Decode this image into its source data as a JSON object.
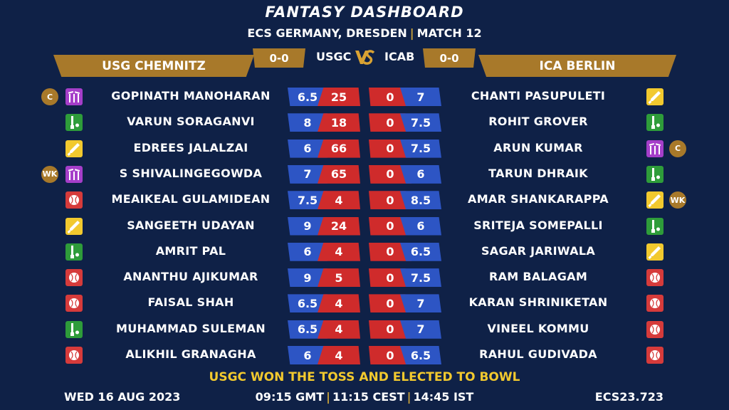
{
  "header": {
    "title": "FANTASY DASHBOARD",
    "subtitle_left": "ECS GERMANY, DRESDEN",
    "subtitle_sep": "|",
    "subtitle_right": "MATCH 12"
  },
  "teams": {
    "left": {
      "name": "USG CHEMNITZ",
      "abbr": "USGC",
      "score": "0-0"
    },
    "right": {
      "name": "ICA BERLIN",
      "abbr": "ICAB",
      "score": "0-0"
    },
    "vs": "VS"
  },
  "role_colors": {
    "bat": "#f2c92e",
    "bowl": "#d63b3b",
    "wk": "#a53ec9",
    "ar": "#2e9c3a"
  },
  "rows": [
    {
      "l_badge": "C",
      "l_role": "wk",
      "l_name": "GOPINATH MANOHARAN",
      "l_v1": "6.5",
      "l_v2": "25",
      "r_v1": "0",
      "r_v2": "7",
      "r_name": "CHANTI PASUPULETI",
      "r_role": "bat",
      "r_badge": ""
    },
    {
      "l_badge": "",
      "l_role": "ar",
      "l_name": "VARUN SORAGANVI",
      "l_v1": "8",
      "l_v2": "18",
      "r_v1": "0",
      "r_v2": "7.5",
      "r_name": "ROHIT GROVER",
      "r_role": "ar",
      "r_badge": ""
    },
    {
      "l_badge": "",
      "l_role": "bat",
      "l_name": "EDREES JALALZAI",
      "l_v1": "6",
      "l_v2": "66",
      "r_v1": "0",
      "r_v2": "7.5",
      "r_name": "ARUN KUMAR",
      "r_role": "wk",
      "r_badge": "C"
    },
    {
      "l_badge": "WK",
      "l_role": "wk",
      "l_name": "S SHIVALINGEGOWDA",
      "l_v1": "7",
      "l_v2": "65",
      "r_v1": "0",
      "r_v2": "6",
      "r_name": "TARUN DHRAIK",
      "r_role": "ar",
      "r_badge": ""
    },
    {
      "l_badge": "",
      "l_role": "bowl",
      "l_name": "MEAIKEAL GULAMIDEAN",
      "l_v1": "7.5",
      "l_v2": "4",
      "r_v1": "0",
      "r_v2": "8.5",
      "r_name": "AMAR SHANKARAPPA",
      "r_role": "bat",
      "r_badge": "WK"
    },
    {
      "l_badge": "",
      "l_role": "bat",
      "l_name": "SANGEETH UDAYAN",
      "l_v1": "9",
      "l_v2": "24",
      "r_v1": "0",
      "r_v2": "6",
      "r_name": "SRITEJA SOMEPALLI",
      "r_role": "ar",
      "r_badge": ""
    },
    {
      "l_badge": "",
      "l_role": "ar",
      "l_name": "AMRIT PAL",
      "l_v1": "6",
      "l_v2": "4",
      "r_v1": "0",
      "r_v2": "6.5",
      "r_name": "SAGAR JARIWALA",
      "r_role": "bat",
      "r_badge": ""
    },
    {
      "l_badge": "",
      "l_role": "bowl",
      "l_name": "ANANTHU AJIKUMAR",
      "l_v1": "9",
      "l_v2": "5",
      "r_v1": "0",
      "r_v2": "7.5",
      "r_name": "RAM BALAGAM",
      "r_role": "bowl",
      "r_badge": ""
    },
    {
      "l_badge": "",
      "l_role": "bowl",
      "l_name": "FAISAL SHAH",
      "l_v1": "6.5",
      "l_v2": "4",
      "r_v1": "0",
      "r_v2": "7",
      "r_name": "KARAN SHRINIKETAN",
      "r_role": "bowl",
      "r_badge": ""
    },
    {
      "l_badge": "",
      "l_role": "ar",
      "l_name": "MUHAMMAD SULEMAN",
      "l_v1": "6.5",
      "l_v2": "4",
      "r_v1": "0",
      "r_v2": "7",
      "r_name": "VINEEL KOMMU",
      "r_role": "bowl",
      "r_badge": ""
    },
    {
      "l_badge": "",
      "l_role": "bowl",
      "l_name": "ALIKHIL GRANAGHA",
      "l_v1": "6",
      "l_v2": "4",
      "r_v1": "0",
      "r_v2": "6.5",
      "r_name": "RAHUL GUDIVADA",
      "r_role": "bowl",
      "r_badge": ""
    }
  ],
  "toss": "USGC WON THE TOSS AND ELECTED TO BOWL",
  "footer": {
    "date": "WED 16 AUG 2023",
    "time_gmt": "09:15 GMT",
    "time_cest": "11:15 CEST",
    "time_ist": "14:45 IST",
    "sep": "|",
    "code": "ECS23.723"
  }
}
